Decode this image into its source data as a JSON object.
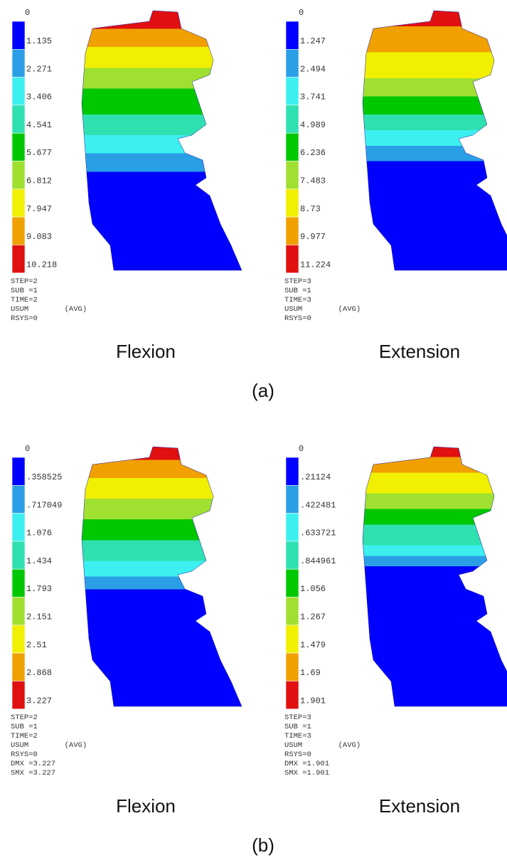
{
  "panels": [
    {
      "label": "(a)",
      "plots": [
        {
          "legend": [
            "0",
            "1.135",
            "2.271",
            "3.406",
            "4.541",
            "5.677",
            "6.812",
            "7.947",
            "9.083",
            "10.218"
          ],
          "info": [
            "STEP=2",
            "SUB =1",
            "TIME=2",
            "USUM        (AVG)",
            "RSYS=0"
          ],
          "caption": "Flexion"
        },
        {
          "legend": [
            "0",
            "1.247",
            "2.494",
            "3.741",
            "4.989",
            "6.236",
            "7.483",
            "8.73",
            "9.977",
            "11.224"
          ],
          "info": [
            "STEP=3",
            "SUB =1",
            "TIME=3",
            "USUM        (AVG)",
            "RSYS=0"
          ],
          "caption": "Extension"
        }
      ]
    },
    {
      "label": "(b)",
      "plots": [
        {
          "legend": [
            "0",
            ".358525",
            ".717049",
            "1.076",
            "1.434",
            "1.793",
            "2.151",
            "2.51",
            "2.868",
            "3.227"
          ],
          "info": [
            "STEP=2",
            "SUB =1",
            "TIME=2",
            "USUM        (AVG)",
            "RSYS=0",
            "DMX =3.227",
            "SMX =3.227"
          ],
          "caption": "Flexion"
        },
        {
          "legend": [
            "0",
            ".21124",
            ".422481",
            ".633721",
            ".844961",
            "1.056",
            "1.267",
            "1.479",
            "1.69",
            "1.901"
          ],
          "info": [
            "STEP=3",
            "SUB =1",
            "TIME=3",
            "USUM        (AVG)",
            "RSYS=0",
            "DMX =1.901",
            "SMX =1.901"
          ],
          "caption": "Extension"
        }
      ]
    }
  ]
}
